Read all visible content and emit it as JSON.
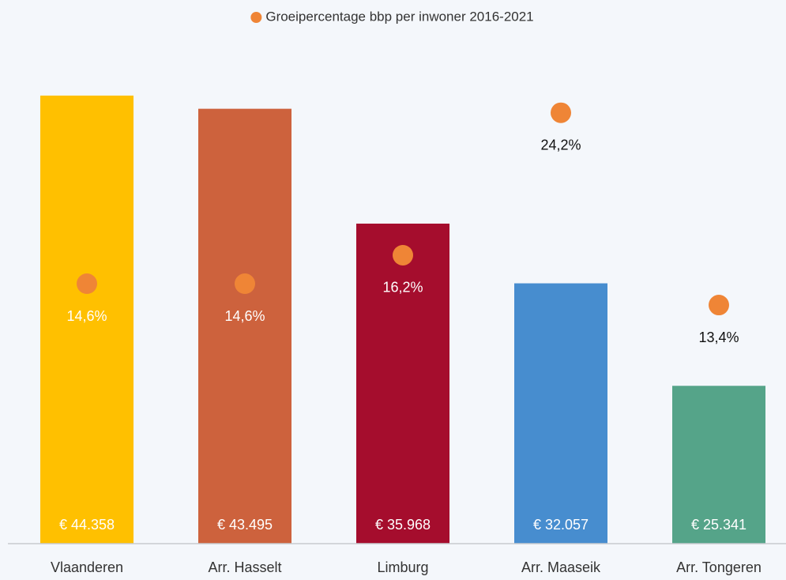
{
  "chart_data": {
    "type": "bar",
    "categories": [
      "Vlaanderen",
      "Arr. Hasselt",
      "Limburg",
      "Arr. Maaseik",
      "Arr. Tongeren"
    ],
    "series": [
      {
        "type": "bar",
        "colors": [
          "#ffc000",
          "#cd623d",
          "#a50d2d",
          "#478dcf",
          "#55a489"
        ],
        "values": [
          44358,
          43495,
          35968,
          32057,
          25341
        ],
        "value_labels": [
          "€ 44.358",
          "€ 43.495",
          "€ 35.968",
          "€ 32.057",
          "€ 25.341"
        ]
      },
      {
        "type": "scatter",
        "name": "Groeipercentage bbp per inwoner 2016-2021",
        "color": "#ef8536",
        "axis": "y2",
        "values": [
          14.6,
          14.6,
          16.2,
          24.2,
          13.4
        ],
        "value_labels": [
          "14,6%",
          "14,6%",
          "16,2%",
          "24,2%",
          "13,4%"
        ]
      }
    ],
    "ylim": [
      15000,
      50000
    ],
    "y2lim": [
      0,
      30
    ],
    "legend": "top"
  }
}
